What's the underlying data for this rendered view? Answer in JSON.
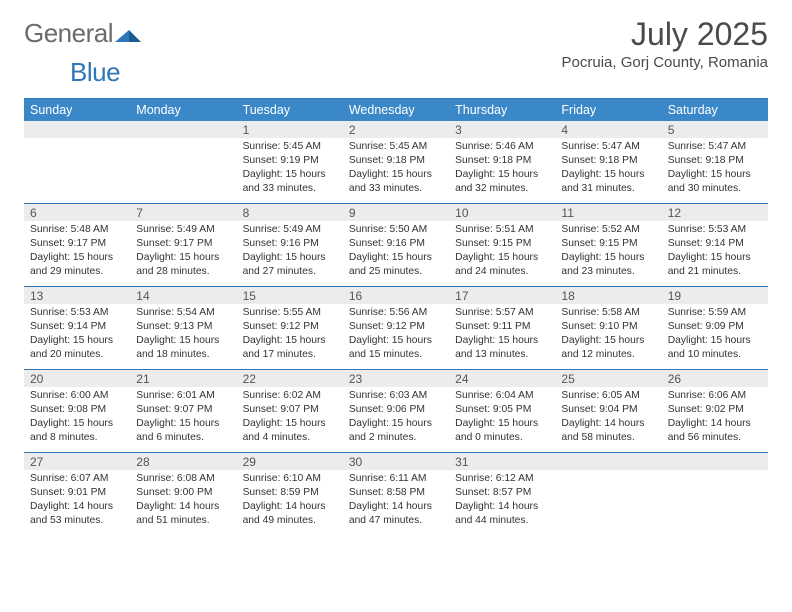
{
  "brand": {
    "general": "General",
    "blue": "Blue"
  },
  "month_title": "July 2025",
  "location": "Pocruia, Gorj County, Romania",
  "colors": {
    "accent": "#2f77b8",
    "header_bg": "#3b88c9",
    "daynum_bg": "#ececec",
    "text": "#333333",
    "title_text": "#4a4a4a"
  },
  "day_names": [
    "Sunday",
    "Monday",
    "Tuesday",
    "Wednesday",
    "Thursday",
    "Friday",
    "Saturday"
  ],
  "weeks": [
    [
      null,
      null,
      {
        "n": "1",
        "sr": "5:45 AM",
        "ss": "9:19 PM",
        "dl": "15 hours and 33 minutes."
      },
      {
        "n": "2",
        "sr": "5:45 AM",
        "ss": "9:18 PM",
        "dl": "15 hours and 33 minutes."
      },
      {
        "n": "3",
        "sr": "5:46 AM",
        "ss": "9:18 PM",
        "dl": "15 hours and 32 minutes."
      },
      {
        "n": "4",
        "sr": "5:47 AM",
        "ss": "9:18 PM",
        "dl": "15 hours and 31 minutes."
      },
      {
        "n": "5",
        "sr": "5:47 AM",
        "ss": "9:18 PM",
        "dl": "15 hours and 30 minutes."
      }
    ],
    [
      {
        "n": "6",
        "sr": "5:48 AM",
        "ss": "9:17 PM",
        "dl": "15 hours and 29 minutes."
      },
      {
        "n": "7",
        "sr": "5:49 AM",
        "ss": "9:17 PM",
        "dl": "15 hours and 28 minutes."
      },
      {
        "n": "8",
        "sr": "5:49 AM",
        "ss": "9:16 PM",
        "dl": "15 hours and 27 minutes."
      },
      {
        "n": "9",
        "sr": "5:50 AM",
        "ss": "9:16 PM",
        "dl": "15 hours and 25 minutes."
      },
      {
        "n": "10",
        "sr": "5:51 AM",
        "ss": "9:15 PM",
        "dl": "15 hours and 24 minutes."
      },
      {
        "n": "11",
        "sr": "5:52 AM",
        "ss": "9:15 PM",
        "dl": "15 hours and 23 minutes."
      },
      {
        "n": "12",
        "sr": "5:53 AM",
        "ss": "9:14 PM",
        "dl": "15 hours and 21 minutes."
      }
    ],
    [
      {
        "n": "13",
        "sr": "5:53 AM",
        "ss": "9:14 PM",
        "dl": "15 hours and 20 minutes."
      },
      {
        "n": "14",
        "sr": "5:54 AM",
        "ss": "9:13 PM",
        "dl": "15 hours and 18 minutes."
      },
      {
        "n": "15",
        "sr": "5:55 AM",
        "ss": "9:12 PM",
        "dl": "15 hours and 17 minutes."
      },
      {
        "n": "16",
        "sr": "5:56 AM",
        "ss": "9:12 PM",
        "dl": "15 hours and 15 minutes."
      },
      {
        "n": "17",
        "sr": "5:57 AM",
        "ss": "9:11 PM",
        "dl": "15 hours and 13 minutes."
      },
      {
        "n": "18",
        "sr": "5:58 AM",
        "ss": "9:10 PM",
        "dl": "15 hours and 12 minutes."
      },
      {
        "n": "19",
        "sr": "5:59 AM",
        "ss": "9:09 PM",
        "dl": "15 hours and 10 minutes."
      }
    ],
    [
      {
        "n": "20",
        "sr": "6:00 AM",
        "ss": "9:08 PM",
        "dl": "15 hours and 8 minutes."
      },
      {
        "n": "21",
        "sr": "6:01 AM",
        "ss": "9:07 PM",
        "dl": "15 hours and 6 minutes."
      },
      {
        "n": "22",
        "sr": "6:02 AM",
        "ss": "9:07 PM",
        "dl": "15 hours and 4 minutes."
      },
      {
        "n": "23",
        "sr": "6:03 AM",
        "ss": "9:06 PM",
        "dl": "15 hours and 2 minutes."
      },
      {
        "n": "24",
        "sr": "6:04 AM",
        "ss": "9:05 PM",
        "dl": "15 hours and 0 minutes."
      },
      {
        "n": "25",
        "sr": "6:05 AM",
        "ss": "9:04 PM",
        "dl": "14 hours and 58 minutes."
      },
      {
        "n": "26",
        "sr": "6:06 AM",
        "ss": "9:02 PM",
        "dl": "14 hours and 56 minutes."
      }
    ],
    [
      {
        "n": "27",
        "sr": "6:07 AM",
        "ss": "9:01 PM",
        "dl": "14 hours and 53 minutes."
      },
      {
        "n": "28",
        "sr": "6:08 AM",
        "ss": "9:00 PM",
        "dl": "14 hours and 51 minutes."
      },
      {
        "n": "29",
        "sr": "6:10 AM",
        "ss": "8:59 PM",
        "dl": "14 hours and 49 minutes."
      },
      {
        "n": "30",
        "sr": "6:11 AM",
        "ss": "8:58 PM",
        "dl": "14 hours and 47 minutes."
      },
      {
        "n": "31",
        "sr": "6:12 AM",
        "ss": "8:57 PM",
        "dl": "14 hours and 44 minutes."
      },
      null,
      null
    ]
  ],
  "labels": {
    "sunrise": "Sunrise:",
    "sunset": "Sunset:",
    "daylight": "Daylight:"
  }
}
